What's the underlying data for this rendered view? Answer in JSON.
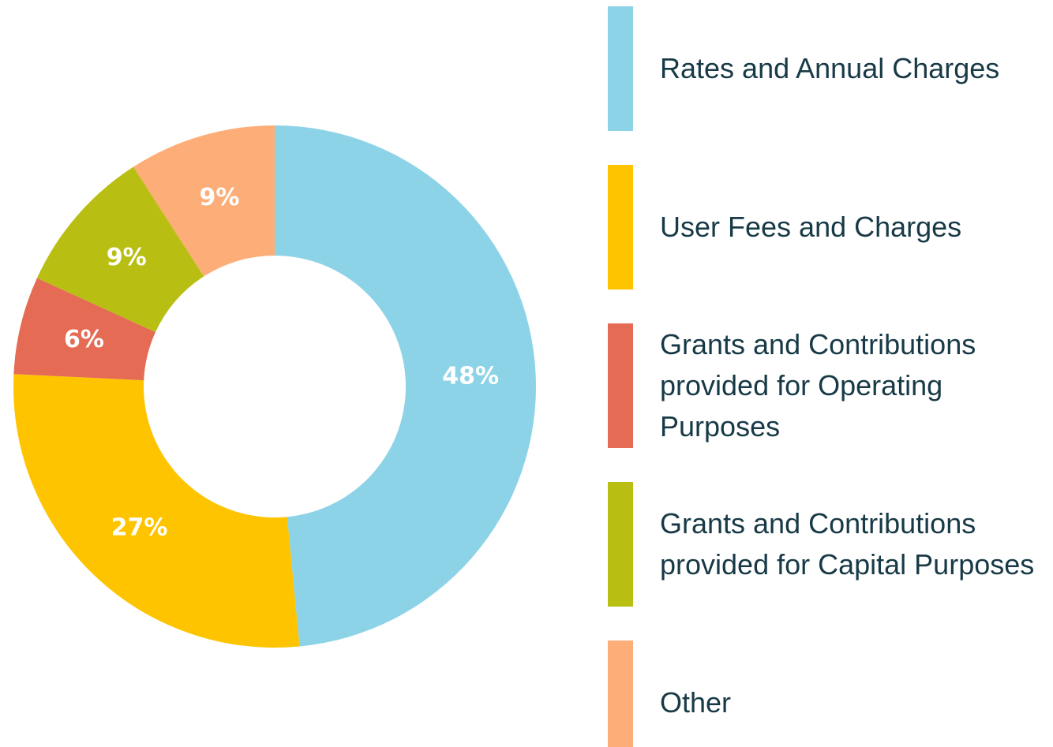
{
  "chart_data": {
    "type": "donut",
    "categories": [
      "Rates and Annual Charges",
      "User Fees and Charges",
      "Grants and Contributions provided for Operating Purposes",
      "Grants and Contributions provided for Capital Purposes",
      "Other"
    ],
    "values": [
      48,
      27,
      6,
      9,
      9
    ],
    "value_labels": [
      "48%",
      "27%",
      "6%",
      "9%",
      "9%"
    ],
    "colors": [
      "#8dd3e7",
      "#ffc400",
      "#e56b55",
      "#b8bf12",
      "#fdad78"
    ],
    "legend": "right"
  }
}
